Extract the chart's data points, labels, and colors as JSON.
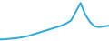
{
  "x": [
    0,
    1,
    2,
    3,
    4,
    5,
    6,
    7,
    8,
    9,
    10,
    11,
    12,
    13,
    14,
    15,
    16,
    17,
    18,
    19,
    20,
    21,
    22,
    23
  ],
  "y": [
    1,
    1.2,
    1.5,
    1.8,
    2.2,
    2.8,
    3.5,
    4.5,
    5.5,
    6.5,
    7.5,
    8.5,
    9.5,
    10.5,
    12,
    14,
    20,
    26,
    18,
    13,
    10,
    9.5,
    10,
    10.5
  ],
  "line_color": "#2ca8dc",
  "line_width": 1.4,
  "bg_color": "#ffffff",
  "ylim": [
    0,
    28
  ],
  "xlim": [
    0,
    23
  ]
}
